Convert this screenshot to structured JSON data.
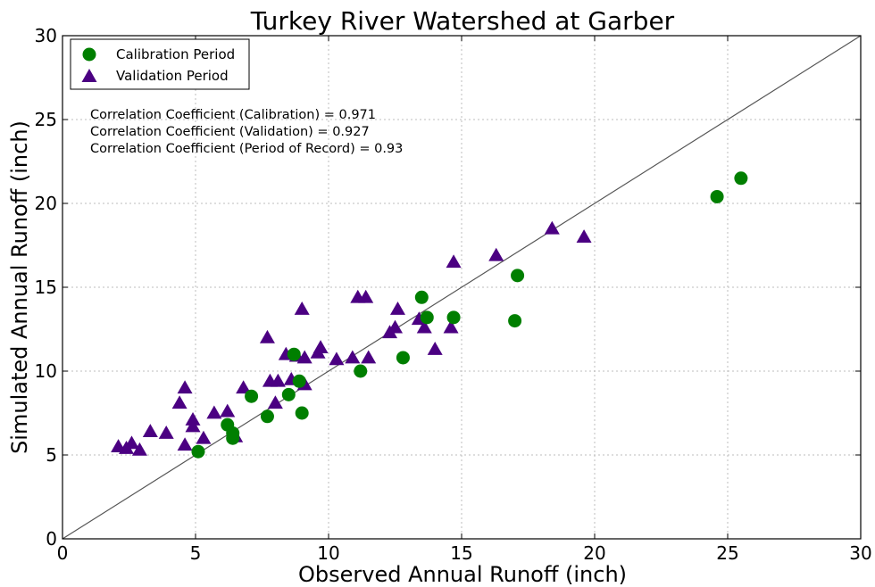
{
  "chart_data": {
    "type": "scatter",
    "title": "Turkey River Watershed at Garber",
    "xlabel": "Observed Annual Runoff (inch)",
    "ylabel": "Simulated Annual Runoff (inch)",
    "xlim": [
      0,
      30
    ],
    "ylim": [
      0,
      30
    ],
    "xticks": [
      "0",
      "5",
      "10",
      "15",
      "20",
      "25",
      "30"
    ],
    "yticks": [
      "0",
      "5",
      "10",
      "15",
      "20",
      "25",
      "30"
    ],
    "grid": true,
    "legend_position": "top-left",
    "reference_line": {
      "from": [
        0,
        0
      ],
      "to": [
        30,
        30
      ],
      "color": "#555555"
    },
    "annotations": [
      "Correlation Coefficient (Calibration) = 0.971",
      "Correlation Coefficient (Validation) = 0.927",
      "Correlation Coefficient (Period of Record) = 0.93"
    ],
    "series": [
      {
        "name": "Calibration Period",
        "marker": "circle",
        "color": "#007f00",
        "points": [
          [
            5.1,
            5.2
          ],
          [
            6.2,
            6.8
          ],
          [
            6.4,
            6.0
          ],
          [
            6.4,
            6.3
          ],
          [
            7.1,
            8.5
          ],
          [
            7.7,
            7.3
          ],
          [
            8.5,
            8.6
          ],
          [
            8.7,
            11.0
          ],
          [
            8.9,
            9.4
          ],
          [
            9.0,
            7.5
          ],
          [
            11.2,
            10.0
          ],
          [
            12.8,
            10.8
          ],
          [
            13.5,
            14.4
          ],
          [
            13.7,
            13.2
          ],
          [
            14.7,
            13.2
          ],
          [
            17.0,
            13.0
          ],
          [
            17.1,
            15.7
          ],
          [
            24.6,
            20.4
          ],
          [
            25.5,
            21.5
          ]
        ]
      },
      {
        "name": "Validation Period",
        "marker": "triangle",
        "color": "#4b0082",
        "points": [
          [
            2.1,
            5.5
          ],
          [
            2.4,
            5.4
          ],
          [
            2.6,
            5.7
          ],
          [
            2.9,
            5.3
          ],
          [
            3.3,
            6.4
          ],
          [
            3.9,
            6.3
          ],
          [
            4.4,
            8.1
          ],
          [
            4.6,
            5.6
          ],
          [
            4.6,
            9.0
          ],
          [
            4.9,
            6.7
          ],
          [
            4.9,
            7.1
          ],
          [
            5.3,
            6.0
          ],
          [
            5.7,
            7.5
          ],
          [
            6.2,
            7.6
          ],
          [
            6.5,
            6.1
          ],
          [
            6.8,
            9.0
          ],
          [
            7.7,
            12.0
          ],
          [
            7.8,
            9.4
          ],
          [
            8.0,
            8.1
          ],
          [
            8.1,
            9.4
          ],
          [
            8.4,
            11.0
          ],
          [
            8.6,
            9.5
          ],
          [
            8.8,
            10.9
          ],
          [
            9.0,
            13.7
          ],
          [
            9.1,
            10.8
          ],
          [
            9.1,
            9.2
          ],
          [
            9.6,
            11.1
          ],
          [
            9.7,
            11.4
          ],
          [
            10.3,
            10.7
          ],
          [
            10.9,
            10.8
          ],
          [
            11.1,
            14.4
          ],
          [
            11.4,
            14.4
          ],
          [
            11.5,
            10.8
          ],
          [
            12.3,
            12.3
          ],
          [
            12.5,
            12.6
          ],
          [
            12.6,
            13.7
          ],
          [
            13.4,
            13.1
          ],
          [
            13.6,
            12.6
          ],
          [
            14.0,
            11.3
          ],
          [
            14.6,
            12.6
          ],
          [
            14.7,
            16.5
          ],
          [
            16.3,
            16.9
          ],
          [
            18.4,
            18.5
          ],
          [
            19.6,
            18.0
          ]
        ]
      }
    ]
  }
}
